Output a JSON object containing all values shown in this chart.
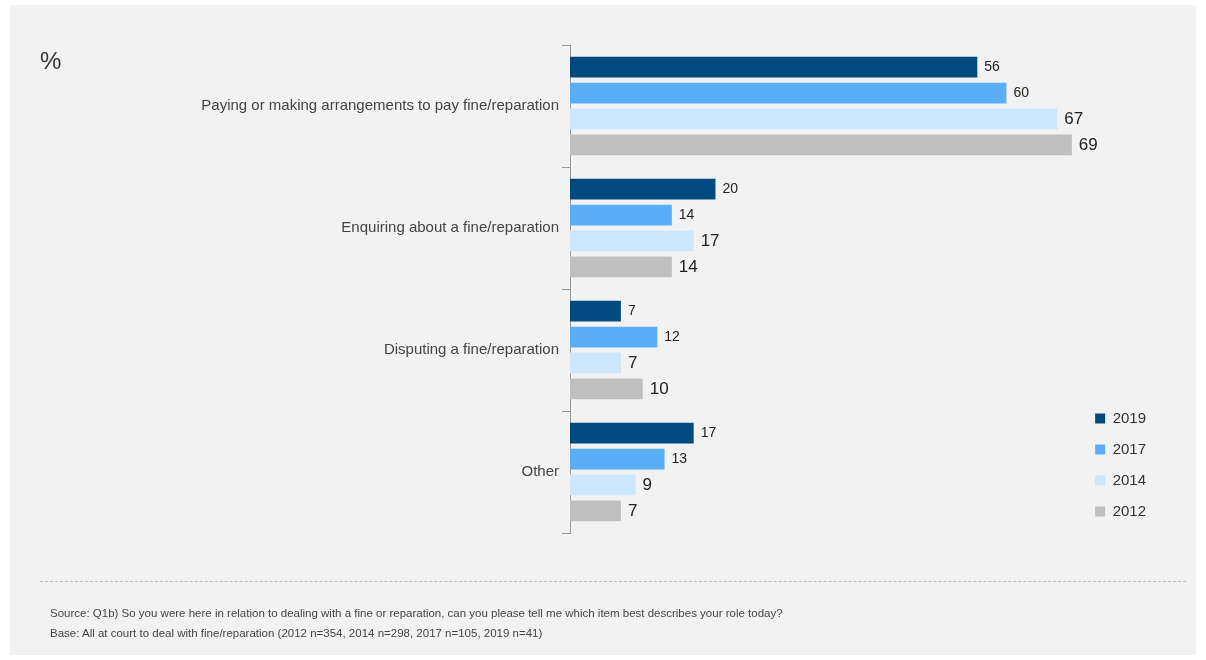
{
  "chart_data": {
    "type": "bar",
    "orientation": "horizontal",
    "title": "%",
    "categories": [
      "Paying or making arrangements to pay fine/reparation",
      "Enquiring about a fine/reparation",
      "Disputing a fine/reparation",
      "Other"
    ],
    "series": [
      {
        "name": "2019",
        "color": "#004a80",
        "values": [
          56,
          20,
          7,
          17
        ]
      },
      {
        "name": "2017",
        "color": "#5aaef5",
        "values": [
          60,
          14,
          12,
          13
        ]
      },
      {
        "name": "2014",
        "color": "#cce6fb",
        "values": [
          67,
          17,
          7,
          9
        ]
      },
      {
        "name": "2012",
        "color": "#bfbfbf",
        "values": [
          69,
          14,
          10,
          7
        ]
      }
    ],
    "data_labels": true,
    "legend": "bottom right",
    "annotations": [
      "Source: Q1b) So you were here in relation to dealing with a fine or reparation, can you please tell me which item best describes your role today?",
      "Base: All at court to deal with fine/reparation (2012 n=354, 2014 n=298, 2017 n=105, 2019 n=41)"
    ]
  }
}
